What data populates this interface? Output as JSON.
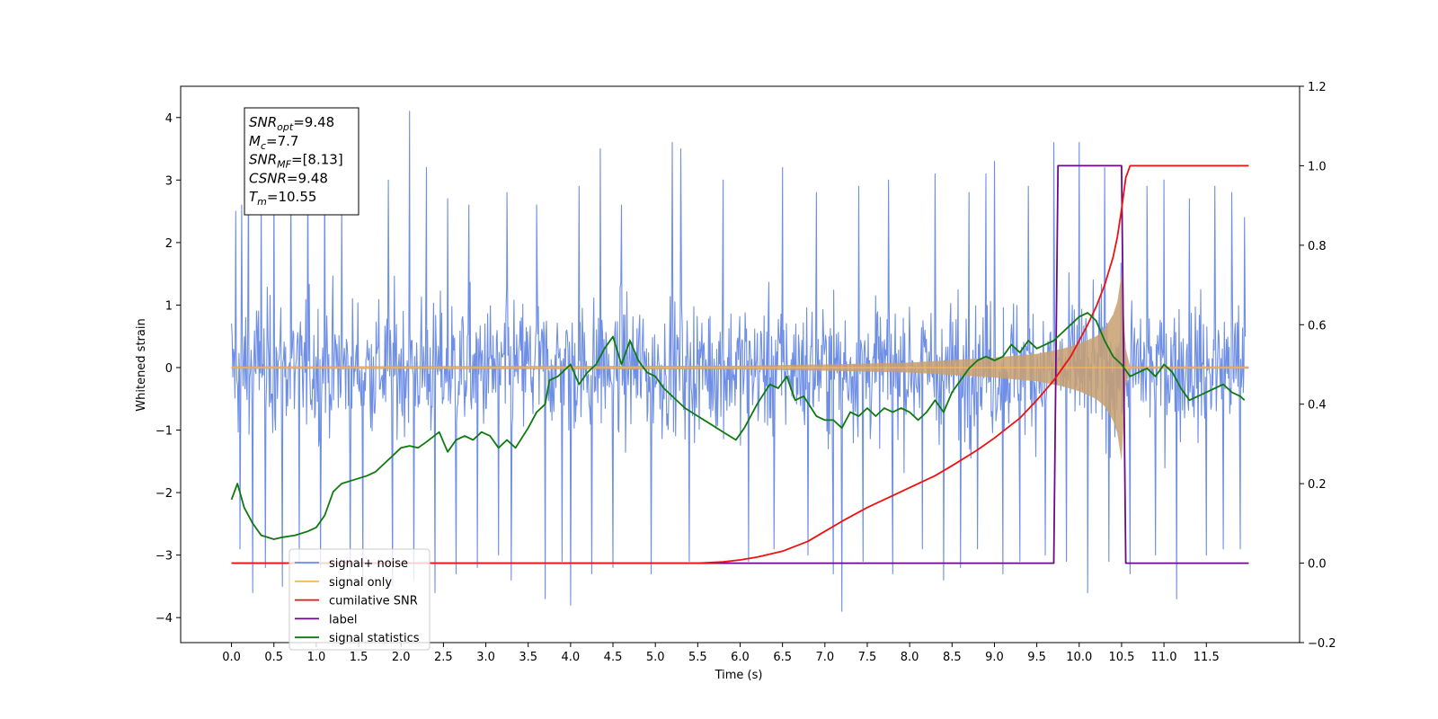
{
  "chart_data": {
    "type": "line",
    "title": "",
    "xlabel": "Time (s)",
    "ylabel": "Whitened strain",
    "y2label": "",
    "xlim": [
      -0.6,
      12.6
    ],
    "ylim": [
      -4.4,
      4.5
    ],
    "y2lim": [
      -0.2,
      1.2
    ],
    "grid": false,
    "legend_position": "bottom-left",
    "x_ticks": [
      "0.0",
      "0.5",
      "1.0",
      "1.5",
      "2.0",
      "2.5",
      "3.0",
      "3.5",
      "4.0",
      "4.5",
      "5.0",
      "5.5",
      "6.0",
      "6.5",
      "7.0",
      "7.5",
      "8.0",
      "8.5",
      "9.0",
      "9.5",
      "10.0",
      "10.5",
      "11.0",
      "11.5"
    ],
    "y_ticks": [
      "4",
      "3",
      "2",
      "1",
      "0",
      "−1",
      "−2",
      "−3",
      "−4"
    ],
    "y2_ticks": [
      "1.2",
      "1.0",
      "0.8",
      "0.6",
      "0.4",
      "0.2",
      "0.0",
      "−0.2"
    ],
    "annotation": [
      {
        "sym": "SNR",
        "sub": "opt",
        "value": "=9.48"
      },
      {
        "sym": "M",
        "sub": "c",
        "value": "=7.7"
      },
      {
        "sym": "SNR",
        "sub": "MF",
        "value": "=[8.13]"
      },
      {
        "sym": "CSNR",
        "sub": "",
        "value": "=9.48"
      },
      {
        "sym": "T",
        "sub": "m",
        "value": "=10.55"
      }
    ],
    "series": [
      {
        "name": "signal+ noise",
        "color": "#6f8fe6",
        "axis": "left",
        "description": "Noisy whitened strain, mostly within ±2.5 with spikes to about ±4, over 0 to 12 s",
        "spikes_up": [
          [
            0.05,
            2.5
          ],
          [
            0.12,
            2.6
          ],
          [
            0.2,
            3.3
          ],
          [
            0.35,
            2.8
          ],
          [
            0.5,
            2.9
          ],
          [
            0.7,
            3.1
          ],
          [
            0.9,
            3.2
          ],
          [
            1.1,
            3.3
          ],
          [
            1.3,
            2.6
          ],
          [
            1.55,
            2.8
          ],
          [
            1.85,
            3.0
          ],
          [
            2.1,
            4.1
          ],
          [
            2.3,
            3.2
          ],
          [
            2.55,
            2.7
          ],
          [
            2.8,
            2.6
          ],
          [
            3.25,
            2.8
          ],
          [
            3.6,
            2.6
          ],
          [
            4.1,
            2.9
          ],
          [
            4.35,
            3.5
          ],
          [
            4.6,
            2.6
          ],
          [
            4.95,
            3.6
          ],
          [
            5.2,
            3.6
          ],
          [
            5.3,
            3.5
          ],
          [
            5.8,
            3.0
          ],
          [
            6.1,
            3.6
          ],
          [
            6.5,
            3.2
          ],
          [
            6.9,
            2.8
          ],
          [
            7.1,
            3.4
          ],
          [
            7.4,
            2.9
          ],
          [
            7.75,
            3.0
          ],
          [
            8.3,
            3.1
          ],
          [
            8.7,
            2.8
          ],
          [
            8.9,
            3.1
          ],
          [
            9.0,
            3.3
          ],
          [
            9.4,
            2.9
          ],
          [
            9.7,
            3.6
          ],
          [
            10.0,
            3.6
          ],
          [
            10.3,
            3.2
          ],
          [
            10.6,
            3.3
          ],
          [
            10.8,
            2.9
          ],
          [
            11.0,
            3.0
          ],
          [
            11.3,
            2.7
          ],
          [
            11.6,
            2.9
          ],
          [
            11.8,
            2.8
          ],
          [
            11.95,
            2.4
          ]
        ],
        "spikes_down": [
          [
            0.1,
            -2.9
          ],
          [
            0.25,
            -3.6
          ],
          [
            0.4,
            -3.2
          ],
          [
            0.6,
            -3.5
          ],
          [
            0.8,
            -3.1
          ],
          [
            1.05,
            -3.2
          ],
          [
            1.4,
            -3.3
          ],
          [
            1.55,
            -3.4
          ],
          [
            1.9,
            -3.5
          ],
          [
            2.15,
            -3.4
          ],
          [
            2.4,
            -3.6
          ],
          [
            2.65,
            -3.3
          ],
          [
            2.9,
            -3.2
          ],
          [
            3.15,
            -3.0
          ],
          [
            3.3,
            -3.4
          ],
          [
            3.7,
            -3.7
          ],
          [
            3.9,
            -3.1
          ],
          [
            4.0,
            -3.8
          ],
          [
            4.25,
            -3.3
          ],
          [
            4.5,
            -3.2
          ],
          [
            4.95,
            -3.3
          ],
          [
            5.4,
            -3.1
          ],
          [
            6.1,
            -3.1
          ],
          [
            6.4,
            -2.9
          ],
          [
            6.8,
            -3.0
          ],
          [
            7.1,
            -3.3
          ],
          [
            7.2,
            -3.9
          ],
          [
            7.45,
            -3.1
          ],
          [
            7.8,
            -3.3
          ],
          [
            8.15,
            -2.9
          ],
          [
            8.4,
            -3.4
          ],
          [
            8.6,
            -3.2
          ],
          [
            8.8,
            -2.9
          ],
          [
            9.1,
            -3.3
          ],
          [
            9.3,
            -3.1
          ],
          [
            9.6,
            -3.0
          ],
          [
            9.85,
            -3.1
          ],
          [
            10.1,
            -3.6
          ],
          [
            10.35,
            -3.1
          ],
          [
            10.6,
            -3.3
          ],
          [
            10.9,
            -3.0
          ],
          [
            11.15,
            -3.7
          ],
          [
            11.5,
            -3.0
          ],
          [
            11.7,
            -2.9
          ],
          [
            11.9,
            -2.9
          ]
        ]
      },
      {
        "name": "signal only",
        "color": "#f5b75a",
        "axis": "left",
        "envelope": {
          "x": [
            0.0,
            6.0,
            7.0,
            8.0,
            8.5,
            9.0,
            9.5,
            9.8,
            10.0,
            10.2,
            10.3,
            10.4,
            10.45,
            10.5,
            10.55,
            10.6,
            11.0,
            12.0
          ],
          "amp": [
            0.02,
            0.03,
            0.05,
            0.08,
            0.12,
            0.16,
            0.22,
            0.3,
            0.38,
            0.5,
            0.62,
            0.85,
            1.05,
            1.5,
            0.3,
            0.02,
            0.02,
            0.02
          ]
        }
      },
      {
        "name": "cumilative SNR",
        "color": "#ee1111",
        "axis": "right",
        "x": [
          0.0,
          5.5,
          5.8,
          6.0,
          6.2,
          6.5,
          6.8,
          7.0,
          7.2,
          7.5,
          7.8,
          8.0,
          8.3,
          8.5,
          8.8,
          9.0,
          9.3,
          9.5,
          9.7,
          9.9,
          10.0,
          10.1,
          10.2,
          10.3,
          10.4,
          10.45,
          10.5,
          10.55,
          10.6,
          11.0,
          11.5,
          12.0
        ],
        "y": [
          0.0,
          0.0,
          0.003,
          0.008,
          0.015,
          0.03,
          0.055,
          0.08,
          0.105,
          0.14,
          0.17,
          0.19,
          0.22,
          0.245,
          0.285,
          0.315,
          0.365,
          0.41,
          0.46,
          0.52,
          0.56,
          0.6,
          0.645,
          0.7,
          0.77,
          0.82,
          0.89,
          0.97,
          1.0,
          1.0,
          1.0,
          1.0
        ]
      },
      {
        "name": "label",
        "color": "#6a0a8a",
        "axis": "right",
        "x": [
          0.0,
          9.7,
          9.75,
          10.5,
          10.55,
          12.0
        ],
        "y": [
          0.0,
          0.0,
          1.0,
          1.0,
          0.0,
          0.0
        ]
      },
      {
        "name": "signal statistics",
        "color": "#0e7a0e",
        "axis": "right",
        "x": [
          0.0,
          0.07,
          0.15,
          0.25,
          0.35,
          0.5,
          0.6,
          0.75,
          0.9,
          1.0,
          1.1,
          1.2,
          1.3,
          1.45,
          1.6,
          1.7,
          1.8,
          1.9,
          2.0,
          2.1,
          2.2,
          2.3,
          2.45,
          2.55,
          2.65,
          2.75,
          2.85,
          2.95,
          3.05,
          3.15,
          3.25,
          3.35,
          3.5,
          3.6,
          3.7,
          3.75,
          3.85,
          4.0,
          4.1,
          4.2,
          4.3,
          4.4,
          4.5,
          4.6,
          4.7,
          4.8,
          4.9,
          5.0,
          5.1,
          5.2,
          5.35,
          5.5,
          5.65,
          5.8,
          5.95,
          6.05,
          6.2,
          6.35,
          6.45,
          6.55,
          6.65,
          6.75,
          6.9,
          7.0,
          7.1,
          7.2,
          7.3,
          7.4,
          7.5,
          7.6,
          7.7,
          7.8,
          7.9,
          8.0,
          8.1,
          8.2,
          8.3,
          8.4,
          8.5,
          8.6,
          8.7,
          8.8,
          8.9,
          9.0,
          9.1,
          9.2,
          9.3,
          9.4,
          9.5,
          9.6,
          9.7,
          9.8,
          9.9,
          10.0,
          10.1,
          10.2,
          10.3,
          10.4,
          10.5,
          10.6,
          10.7,
          10.8,
          10.9,
          11.0,
          11.1,
          11.2,
          11.3,
          11.4,
          11.5,
          11.6,
          11.7,
          11.8,
          11.9,
          11.95
        ],
        "y": [
          0.16,
          0.2,
          0.14,
          0.1,
          0.07,
          0.06,
          0.065,
          0.07,
          0.08,
          0.09,
          0.12,
          0.18,
          0.2,
          0.21,
          0.22,
          0.23,
          0.25,
          0.27,
          0.29,
          0.295,
          0.29,
          0.305,
          0.33,
          0.28,
          0.31,
          0.32,
          0.31,
          0.33,
          0.32,
          0.29,
          0.31,
          0.29,
          0.34,
          0.38,
          0.4,
          0.46,
          0.47,
          0.5,
          0.45,
          0.48,
          0.5,
          0.54,
          0.57,
          0.5,
          0.56,
          0.51,
          0.48,
          0.47,
          0.44,
          0.42,
          0.39,
          0.37,
          0.35,
          0.33,
          0.31,
          0.34,
          0.4,
          0.45,
          0.44,
          0.47,
          0.41,
          0.42,
          0.37,
          0.36,
          0.36,
          0.34,
          0.38,
          0.37,
          0.39,
          0.37,
          0.39,
          0.38,
          0.39,
          0.38,
          0.36,
          0.38,
          0.41,
          0.38,
          0.43,
          0.46,
          0.49,
          0.51,
          0.52,
          0.51,
          0.52,
          0.55,
          0.53,
          0.56,
          0.54,
          0.55,
          0.56,
          0.58,
          0.6,
          0.62,
          0.63,
          0.61,
          0.56,
          0.52,
          0.5,
          0.47,
          0.48,
          0.49,
          0.47,
          0.5,
          0.48,
          0.44,
          0.41,
          0.42,
          0.43,
          0.44,
          0.45,
          0.43,
          0.42,
          0.41
        ]
      }
    ],
    "legend": [
      {
        "label": "signal+ noise",
        "color": "#6f8fe6"
      },
      {
        "label": "signal only",
        "color": "#f5b75a"
      },
      {
        "label": "cumilative SNR",
        "color": "#ee1111"
      },
      {
        "label": "label",
        "color": "#6a0a8a"
      },
      {
        "label": "signal statistics",
        "color": "#0e7a0e"
      }
    ]
  }
}
